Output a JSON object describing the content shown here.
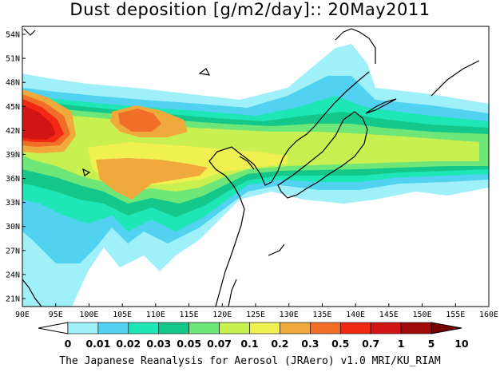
{
  "title": "Dust deposition [g/m2/day]:: 20May2011",
  "footer": "The Japanese Reanalysis for Aerosol (JRAero) v1.0 MRI/KU_RIAM",
  "map": {
    "lon_range": [
      90,
      160
    ],
    "lat_range": [
      20,
      55
    ],
    "lon_ticks": [
      "90E",
      "95E",
      "100E",
      "105E",
      "110E",
      "115E",
      "120E",
      "125E",
      "130E",
      "135E",
      "140E",
      "145E",
      "150E",
      "155E",
      "160E"
    ],
    "lat_ticks": [
      "54N",
      "51N",
      "48N",
      "45N",
      "42N",
      "39N",
      "36N",
      "33N",
      "30N",
      "27N",
      "24N",
      "21N"
    ]
  },
  "colorbar": {
    "labels": [
      "0",
      "0.01",
      "0.02",
      "0.03",
      "0.05",
      "0.07",
      "0.1",
      "0.2",
      "0.3",
      "0.5",
      "0.7",
      "1",
      "5",
      "10"
    ],
    "colors": [
      "#ffffff",
      "#a0f0fa",
      "#50d2f0",
      "#1ee6b4",
      "#14c88c",
      "#6ee678",
      "#c8f050",
      "#f0f050",
      "#f0aa3c",
      "#f06e28",
      "#f02814",
      "#d21414",
      "#a00a0a",
      "#780000"
    ]
  }
}
